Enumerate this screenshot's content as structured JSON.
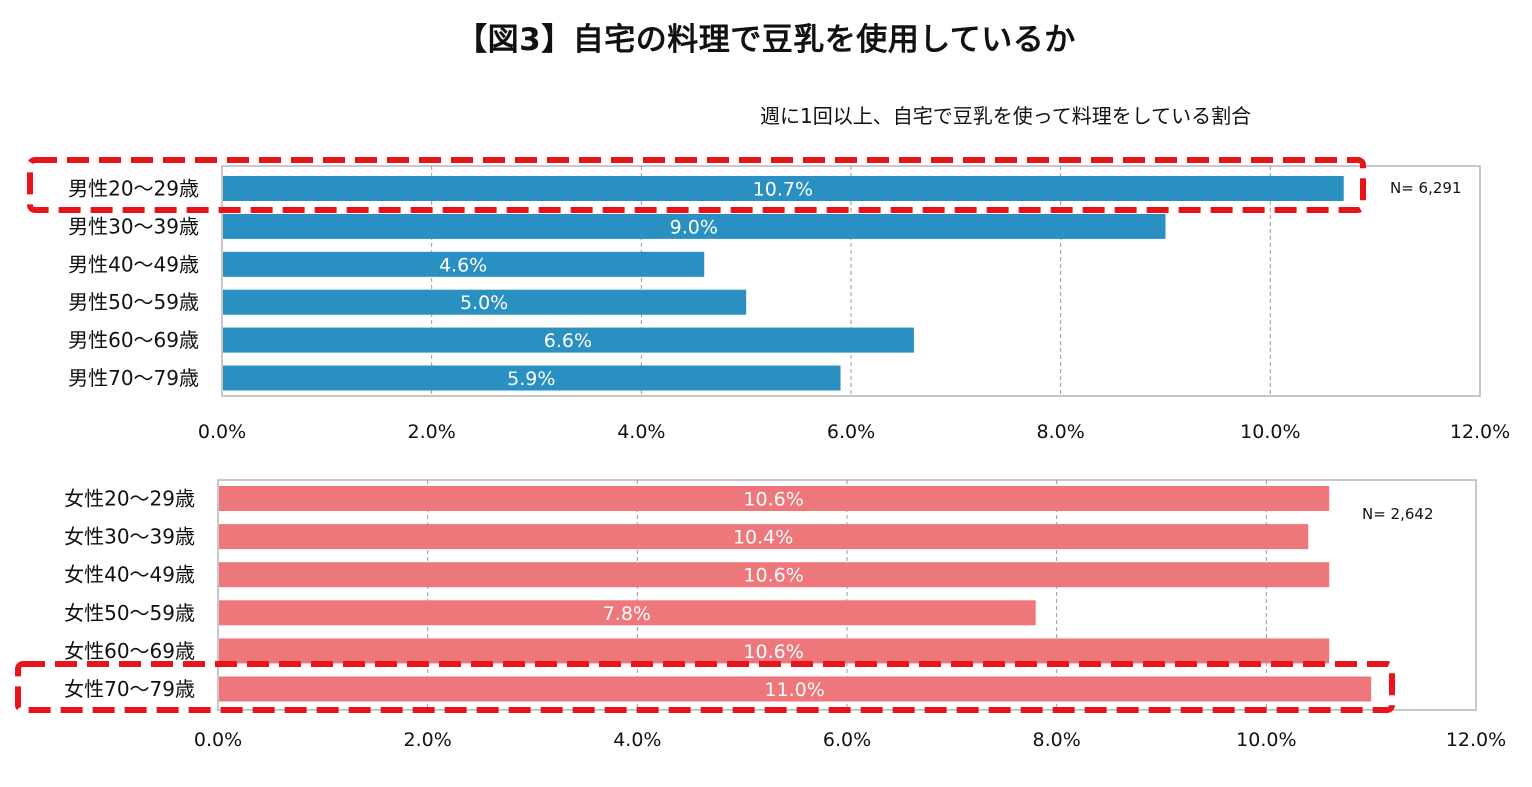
{
  "title": "【図3】自宅の料理で豆乳を使用しているか",
  "subtitle": "週に1回以上、自宅で豆乳を使って料理をしている割合",
  "chart_data": [
    {
      "type": "bar",
      "orientation": "horizontal",
      "categories": [
        "男性20～29歳",
        "男性30～39歳",
        "男性40～49歳",
        "男性50～59歳",
        "男性60～69歳",
        "男性70～79歳"
      ],
      "values": [
        10.7,
        9.0,
        4.6,
        5.0,
        6.6,
        5.9
      ],
      "data_labels": [
        "10.7%",
        "9.0%",
        "4.6%",
        "5.0%",
        "6.6%",
        "5.9%"
      ],
      "xlim": [
        0,
        12
      ],
      "xticks": [
        "0.0%",
        "2.0%",
        "4.0%",
        "6.0%",
        "8.0%",
        "10.0%",
        "12.0%"
      ],
      "n_label": "N= 6,291",
      "color": "#2a8fc1",
      "highlighted_category": "男性20～29歳",
      "grid": "vertical dashed"
    },
    {
      "type": "bar",
      "orientation": "horizontal",
      "categories": [
        "女性20～29歳",
        "女性30～39歳",
        "女性40～49歳",
        "女性50～59歳",
        "女性60～69歳",
        "女性70～79歳"
      ],
      "values": [
        10.6,
        10.4,
        10.6,
        7.8,
        10.6,
        11.0
      ],
      "data_labels": [
        "10.6%",
        "10.4%",
        "10.6%",
        "7.8%",
        "10.6%",
        "11.0%"
      ],
      "xlim": [
        0,
        12
      ],
      "xticks": [
        "0.0%",
        "2.0%",
        "4.0%",
        "6.0%",
        "8.0%",
        "10.0%",
        "12.0%"
      ],
      "n_label": "N= 2,642",
      "color": "#ee777b",
      "highlighted_category": "女性70～79歳",
      "grid": "vertical dashed"
    }
  ],
  "colors": {
    "highlight_border": "#e8141c",
    "grid": "#9a9a9a",
    "frame": "#b5b5b5"
  }
}
